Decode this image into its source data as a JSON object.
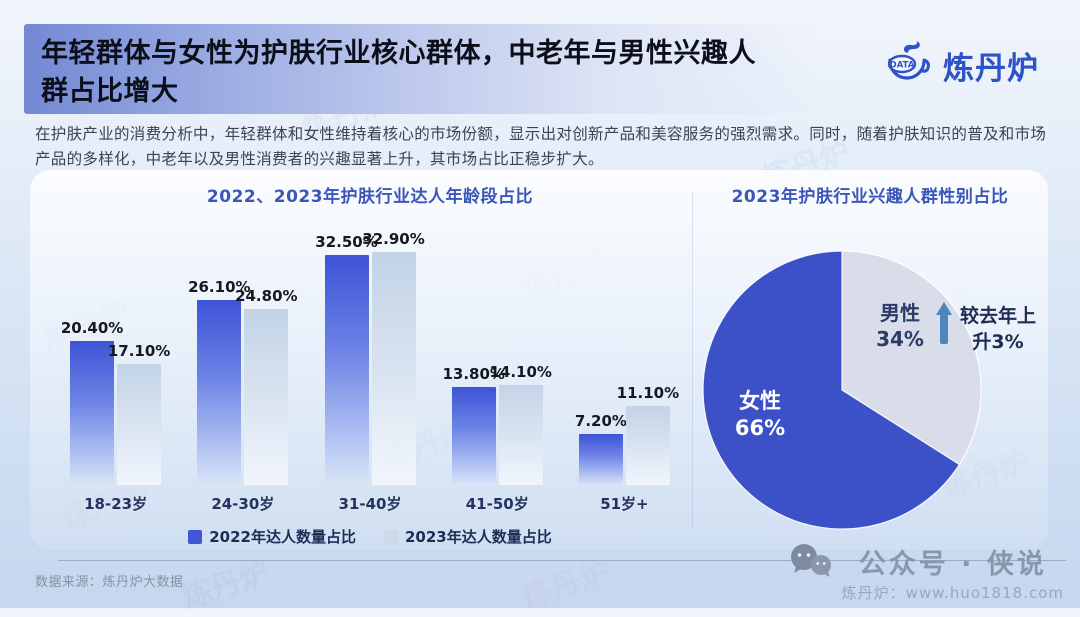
{
  "page": {
    "title": "年轻群体与女性为护肤行业核心群体，中老年与男性兴趣人群占比增大",
    "description": "在护肤产业的消费分析中，年轻群体和女性维持着核心的市场份额，显示出对创新产品和美容服务的强烈需求。同时，随着护肤知识的普及和市场产品的多样化，中老年以及男性消费者的兴趣显著上升，其市场占比正稳步扩大。",
    "source_note": "数据来源：炼丹炉大数据"
  },
  "brand": {
    "logo_text": "炼丹炉",
    "logo_badge": "DATA"
  },
  "watermark": {
    "text": "炼丹炉"
  },
  "footer_badge": {
    "account": "公众号 · 侠说",
    "site": "炼丹炉：www.huo1818.com"
  },
  "chart_data": [
    {
      "type": "bar",
      "title": "2022、2023年护肤行业达人年龄段占比",
      "categories": [
        "18-23岁",
        "24-30岁",
        "31-40岁",
        "41-50岁",
        "51岁+"
      ],
      "series": [
        {
          "name": "2022年达人数量占比",
          "values": [
            20.4,
            26.1,
            32.5,
            13.8,
            7.2
          ],
          "color": "#4156d6"
        },
        {
          "name": "2023年达人数量占比",
          "values": [
            17.1,
            24.8,
            32.9,
            14.1,
            11.1
          ],
          "color": "#ccd9ea"
        }
      ],
      "value_suffix": "%",
      "value_decimals": 2,
      "ylim": [
        0,
        35
      ],
      "grid": false,
      "legend_position": "bottom"
    },
    {
      "type": "pie",
      "title": "2023年护肤行业兴趣人群性别占比",
      "slices": [
        {
          "label": "男性",
          "value": 34,
          "color": "#d8dde9"
        },
        {
          "label": "女性",
          "value": 66,
          "color": "#3c50c8"
        }
      ],
      "start_angle_deg": 0,
      "direction": "clockwise",
      "annotation": "较去年上升3%",
      "annotation_lines": [
        "较去年上",
        "升3%"
      ],
      "annotation_target": "男性"
    }
  ],
  "colors": {
    "accent_blue": "#3c50c8",
    "bar_2022": "#4156d6",
    "bar_2023": "#ccd9ea",
    "pie_female": "#3c50c8",
    "pie_male": "#d8dde9",
    "title_banner": "#7388d4",
    "chart_title": "#3a57b8",
    "arrow": "#4d86bb"
  }
}
